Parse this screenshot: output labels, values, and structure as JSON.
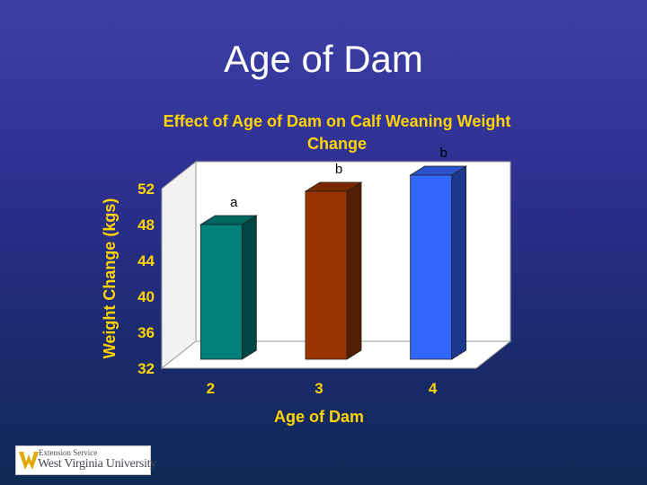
{
  "slide": {
    "title": "Age of Dam"
  },
  "logo": {
    "service_text": "Extension Service",
    "university_text": "West Virginia University",
    "mark": "wvu-flying-wv-icon"
  },
  "colors": {
    "background_top": "#3f3fa6",
    "background_bottom": "#0f2a55",
    "chart_title": "#ffd400",
    "axis_text": "#ffd400",
    "wall": "#ffffff",
    "floor": "#ffffff",
    "logo_gold": "#e0a800"
  },
  "chart_data": {
    "type": "bar",
    "title": "Effect of Age of Dam on Calf Weaning Weight Change",
    "xlabel": "Age of Dam",
    "ylabel": "Weight Change (kgs)",
    "categories": [
      "2",
      "3",
      "4"
    ],
    "values": [
      47.0,
      50.7,
      52.5
    ],
    "labels": [
      "a",
      "b",
      "b"
    ],
    "colors": [
      "#00807a",
      "#993300",
      "#3366ff"
    ],
    "ylim": [
      32,
      52
    ],
    "yticks": [
      32,
      36,
      40,
      44,
      48,
      52
    ],
    "three_d": true,
    "grid": false,
    "legend": "none"
  }
}
